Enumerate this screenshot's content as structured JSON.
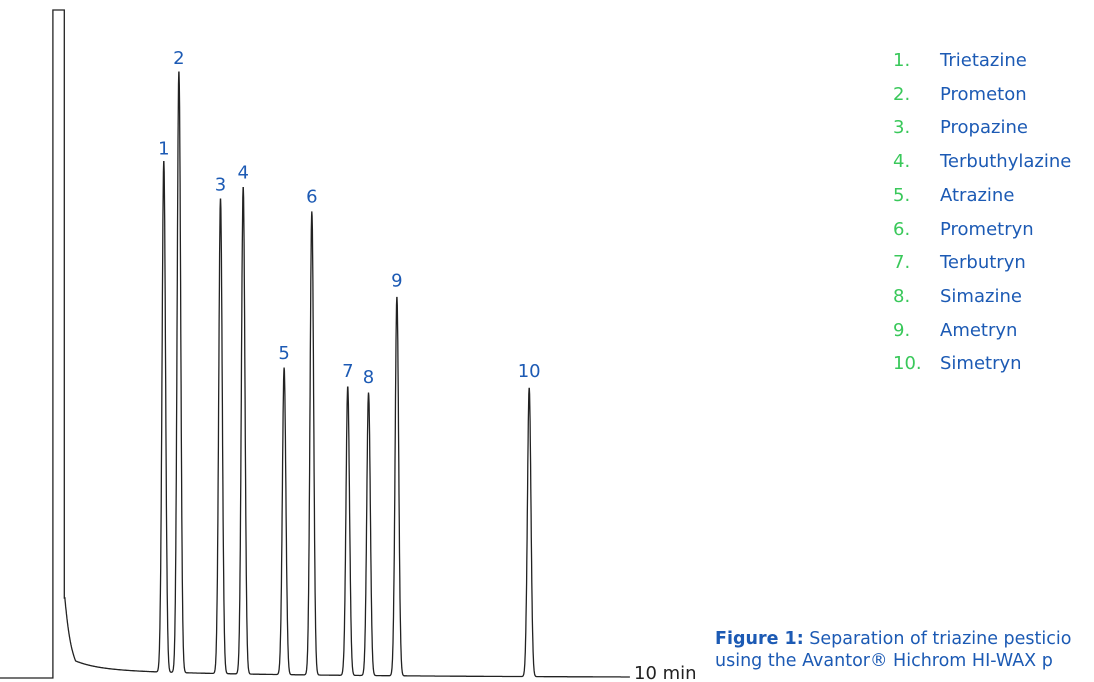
{
  "chart_data": {
    "type": "line",
    "title": "",
    "xlabel": "",
    "ylabel": "",
    "x_end_label": "10 min",
    "xlim": [
      0,
      10
    ],
    "ylim": [
      0,
      100
    ],
    "peaks": [
      {
        "label": "1",
        "rt": 2.6,
        "height": 85
      },
      {
        "label": "2",
        "rt": 2.84,
        "height": 100
      },
      {
        "label": "3",
        "rt": 3.5,
        "height": 79
      },
      {
        "label": "4",
        "rt": 3.86,
        "height": 81
      },
      {
        "label": "5",
        "rt": 4.51,
        "height": 51
      },
      {
        "label": "6",
        "rt": 4.95,
        "height": 77
      },
      {
        "label": "7",
        "rt": 5.52,
        "height": 48
      },
      {
        "label": "8",
        "rt": 5.85,
        "height": 47
      },
      {
        "label": "9",
        "rt": 6.3,
        "height": 63
      },
      {
        "label": "10",
        "rt": 8.4,
        "height": 48
      }
    ],
    "legend": [
      {
        "num": "1.",
        "name": "Trietazine"
      },
      {
        "num": "2.",
        "name": "Prometon"
      },
      {
        "num": "3.",
        "name": "Propazine"
      },
      {
        "num": "4.",
        "name": "Terbuthylazine"
      },
      {
        "num": "5.",
        "name": "Atrazine"
      },
      {
        "num": "6.",
        "name": "Prometryn"
      },
      {
        "num": "7.",
        "name": "Terbutryn"
      },
      {
        "num": "8.",
        "name": "Simazine"
      },
      {
        "num": "9.",
        "name": "Ametryn"
      },
      {
        "num": "10.",
        "name": "Simetryn"
      }
    ],
    "colors": {
      "line": "#222222",
      "peak_label": "#1c5ab4",
      "legend_number": "#39c85a",
      "legend_name": "#1c5ab4"
    }
  },
  "caption": {
    "bold": "Figure 1:",
    "line1": " Separation of triazine pesticio",
    "line2": "using the Avantor® Hichrom HI-WAX p"
  }
}
